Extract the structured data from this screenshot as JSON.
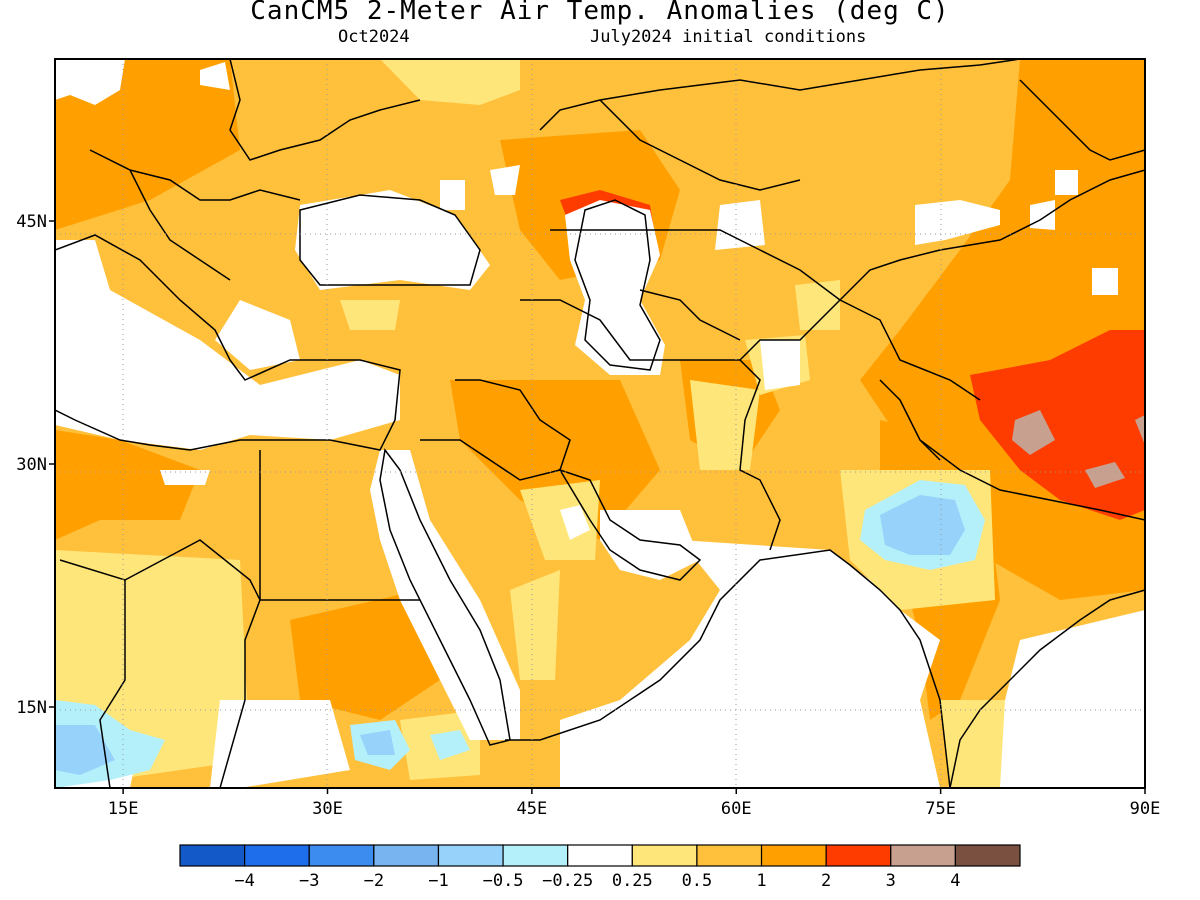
{
  "header": {
    "title": "CanCM5 2-Meter Air Temp. Anomalies (deg C)",
    "subtitle_left": "Oct2024",
    "subtitle_right": "July2024 initial conditions"
  },
  "map": {
    "lon_range": [
      10,
      90
    ],
    "lat_range": [
      10,
      55
    ],
    "lon_ticks": [
      {
        "value": 15,
        "label": "15E"
      },
      {
        "value": 30,
        "label": "30E"
      },
      {
        "value": 45,
        "label": "45E"
      },
      {
        "value": 60,
        "label": "60E"
      },
      {
        "value": 75,
        "label": "75E"
      },
      {
        "value": 90,
        "label": "90E"
      }
    ],
    "lat_ticks": [
      {
        "value": 45,
        "label": "45N"
      },
      {
        "value": 30,
        "label": "30N"
      },
      {
        "value": 15,
        "label": "15N"
      }
    ]
  },
  "colorbar": {
    "colors": [
      "#1459c8",
      "#1e6eeb",
      "#3c8cf0",
      "#78b4f0",
      "#96d2fa",
      "#b4f0fa",
      "#ffffff",
      "#ffe67a",
      "#ffc03c",
      "#ffa000",
      "#ff3c00",
      "#c8a090",
      "#7a5040"
    ],
    "labels": [
      "−4",
      "−3",
      "−2",
      "−1",
      "−0.5",
      "−0.25",
      "0.25",
      "0.5",
      "1",
      "2",
      "3",
      "4"
    ]
  }
}
